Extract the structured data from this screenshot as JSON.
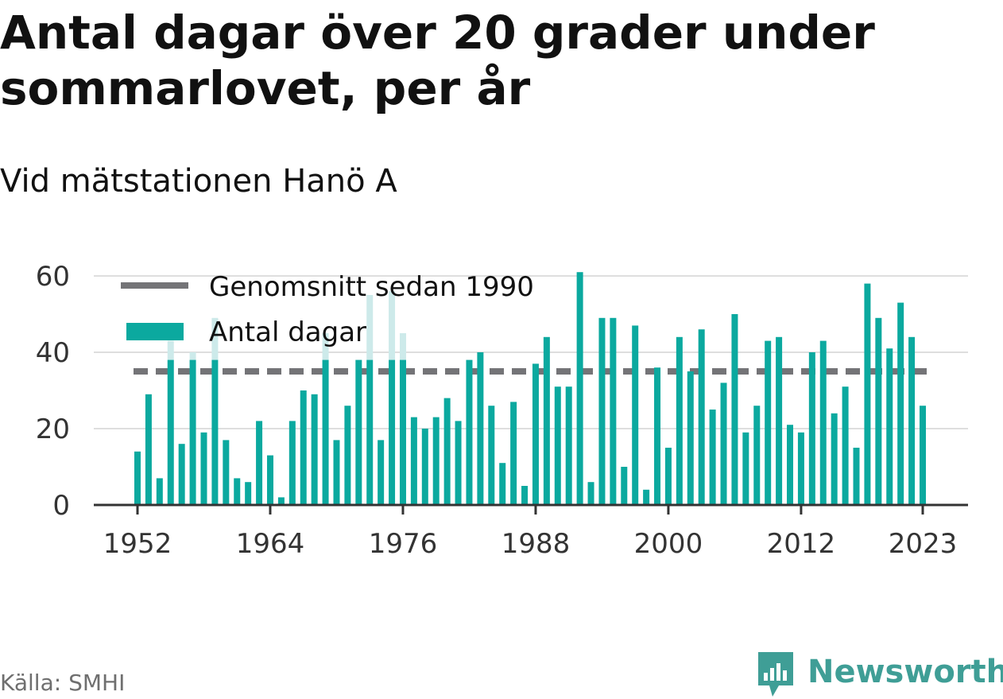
{
  "title": "Antal dagar över 20 grader under sommarlovet, per år",
  "subtitle": "Vid mätstationen Hanö A",
  "source": "Källa: SMHI",
  "brand": "Newsworthy",
  "colors": {
    "bar": "#0ba99f",
    "bar_light": "#cdeaea",
    "average_line": "#747477",
    "grid": "#dedede",
    "axis": "#333333",
    "brand": "#3f9e96"
  },
  "icons": {
    "logo": "bar-chart-speech-bubble-icon"
  },
  "chart_data": {
    "type": "bar",
    "xlabel": "",
    "ylabel": "",
    "ylim": [
      0,
      60
    ],
    "y_ticks": [
      0,
      20,
      40,
      60
    ],
    "x_ticks": [
      1952,
      1964,
      1976,
      1988,
      2000,
      2012,
      2023
    ],
    "grid": true,
    "legend_position": "top-left",
    "legend": [
      {
        "label": "Genomsnitt sedan 1990",
        "type": "dashed-line"
      },
      {
        "label": "Antal dagar",
        "type": "bar"
      }
    ],
    "average_since_1990": 35,
    "x": [
      1952,
      1953,
      1954,
      1955,
      1956,
      1957,
      1958,
      1959,
      1960,
      1961,
      1962,
      1963,
      1964,
      1965,
      1966,
      1967,
      1968,
      1969,
      1970,
      1971,
      1972,
      1973,
      1974,
      1975,
      1976,
      1977,
      1978,
      1979,
      1980,
      1981,
      1982,
      1983,
      1984,
      1985,
      1986,
      1987,
      1988,
      1989,
      1990,
      1991,
      1992,
      1993,
      1994,
      1995,
      1996,
      1997,
      1998,
      1999,
      2000,
      2001,
      2002,
      2003,
      2004,
      2005,
      2006,
      2007,
      2008,
      2009,
      2010,
      2011,
      2012,
      2013,
      2014,
      2015,
      2016,
      2017,
      2018,
      2019,
      2020,
      2021,
      2022,
      2023
    ],
    "series": [
      {
        "name": "Antal dagar",
        "values": [
          14,
          29,
          7,
          43,
          16,
          40,
          19,
          49,
          17,
          7,
          6,
          22,
          13,
          2,
          22,
          30,
          29,
          45,
          17,
          26,
          38,
          55,
          17,
          56,
          45,
          23,
          20,
          23,
          28,
          22,
          38,
          40,
          26,
          11,
          27,
          5,
          37,
          44,
          31,
          31,
          61,
          6,
          49,
          49,
          10,
          47,
          4,
          36,
          15,
          44,
          35,
          46,
          25,
          32,
          50,
          19,
          26,
          43,
          44,
          21,
          19,
          40,
          43,
          24,
          31,
          15,
          58,
          49,
          41,
          53,
          44,
          26
        ]
      }
    ]
  }
}
